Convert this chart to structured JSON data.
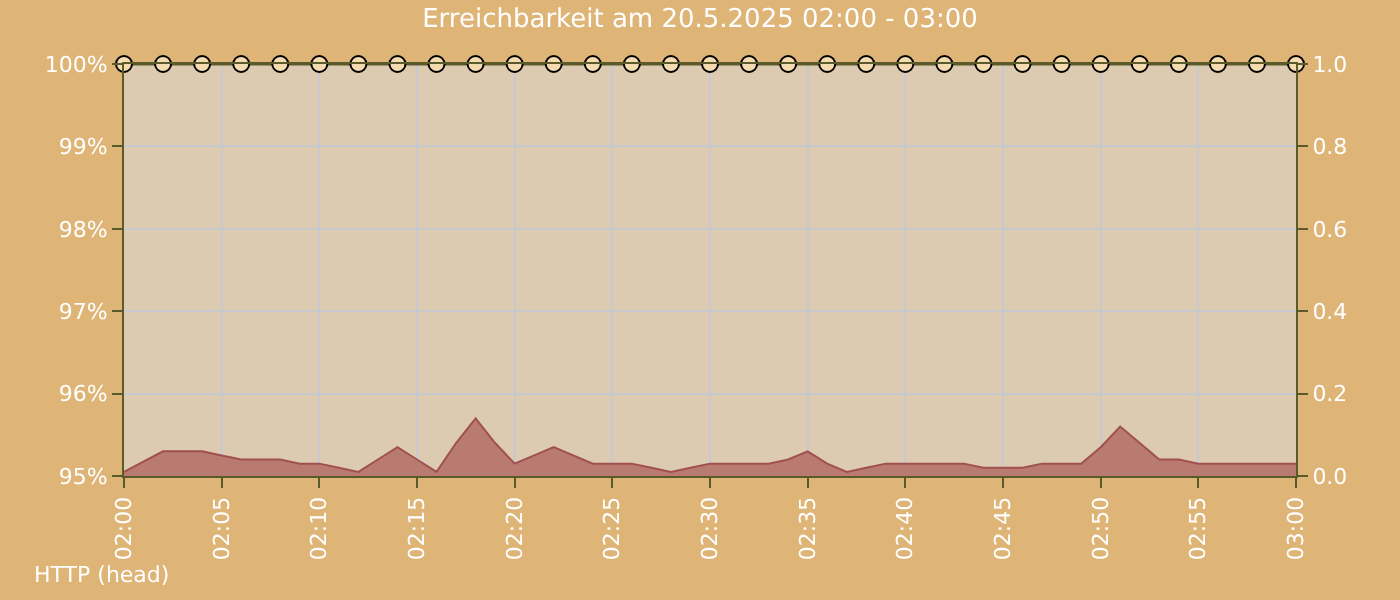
{
  "chart_data": {
    "type": "line",
    "title": "Erreichbarkeit am 20.5.2025 02:00 - 03:00",
    "series": [
      {
        "color": "#5a5a2a",
        "marker": "circle",
        "x": [
          "2025-05-20T02:00",
          "2025-05-20T02:02",
          "2025-05-20T02:04",
          "2025-05-20T02:06",
          "2025-05-20T02:08",
          "2025-05-20T02:10",
          "2025-05-20T02:12",
          "2025-05-20T02:14",
          "2025-05-20T02:16",
          "2025-05-20T02:18",
          "2025-05-20T02:20",
          "2025-05-20T02:22",
          "2025-05-20T02:24",
          "2025-05-20T02:26",
          "2025-05-20T02:28",
          "2025-05-20T02:30",
          "2025-05-20T02:32",
          "2025-05-20T02:34",
          "2025-05-20T02:36",
          "2025-05-20T02:38",
          "2025-05-20T02:40",
          "2025-05-20T02:42",
          "2025-05-20T02:44",
          "2025-05-20T02:46",
          "2025-05-20T02:48",
          "2025-05-20T02:50",
          "2025-05-20T02:52",
          "2025-05-20T02:54",
          "2025-05-20T02:56",
          "2025-05-20T02:58",
          "2025-05-20T03:00"
        ],
        "values": [
          100,
          100,
          100,
          100,
          100,
          100,
          100,
          100,
          100,
          100,
          100,
          100,
          100,
          100,
          100,
          100,
          100,
          100,
          100,
          100,
          100,
          100,
          100,
          100,
          100,
          100,
          100,
          100,
          100,
          100,
          100
        ]
      },
      {
        "type": "area",
        "axis": "y2",
        "color": "#b97b70",
        "x": [
          "2025-05-20T02:00",
          "2025-05-20T02:02",
          "2025-05-20T02:03",
          "2025-05-20T02:04",
          "2025-05-20T02:05",
          "2025-05-20T02:06",
          "2025-05-20T02:07",
          "2025-05-20T02:08",
          "2025-05-20T02:09",
          "2025-05-20T02:10",
          "2025-05-20T02:11",
          "2025-05-20T02:12",
          "2025-05-20T02:13",
          "2025-05-20T02:14",
          "2025-05-20T02:15",
          "2025-05-20T02:16",
          "2025-05-20T02:17",
          "2025-05-20T02:18",
          "2025-05-20T02:19",
          "2025-05-20T02:20",
          "2025-05-20T02:21",
          "2025-05-20T02:22",
          "2025-05-20T02:23",
          "2025-05-20T02:24",
          "2025-05-20T02:25",
          "2025-05-20T02:26",
          "2025-05-20T02:27",
          "2025-05-20T02:28",
          "2025-05-20T02:29",
          "2025-05-20T02:30",
          "2025-05-20T02:31",
          "2025-05-20T02:32",
          "2025-05-20T02:33",
          "2025-05-20T02:34",
          "2025-05-20T02:35",
          "2025-05-20T02:36",
          "2025-05-20T02:37",
          "2025-05-20T02:38",
          "2025-05-20T02:39",
          "2025-05-20T02:40",
          "2025-05-20T02:41",
          "2025-05-20T02:42",
          "2025-05-20T02:43",
          "2025-05-20T02:44",
          "2025-05-20T02:45",
          "2025-05-20T02:46",
          "2025-05-20T02:47",
          "2025-05-20T02:48",
          "2025-05-20T02:49",
          "2025-05-20T02:50",
          "2025-05-20T02:51",
          "2025-05-20T02:52",
          "2025-05-20T02:53",
          "2025-05-20T02:54",
          "2025-05-20T02:55",
          "2025-05-20T02:56",
          "2025-05-20T02:57",
          "2025-05-20T02:58",
          "2025-05-20T02:59",
          "2025-05-20T03:00"
        ],
        "values": [
          0.01,
          0.06,
          0.06,
          0.06,
          0.05,
          0.04,
          0.04,
          0.04,
          0.03,
          0.03,
          0.02,
          0.01,
          0.04,
          0.07,
          0.04,
          0.01,
          0.08,
          0.14,
          0.08,
          0.03,
          0.05,
          0.07,
          0.05,
          0.03,
          0.03,
          0.03,
          0.02,
          0.01,
          0.02,
          0.03,
          0.03,
          0.03,
          0.03,
          0.04,
          0.06,
          0.03,
          0.01,
          0.02,
          0.03,
          0.03,
          0.03,
          0.03,
          0.03,
          0.02,
          0.02,
          0.02,
          0.03,
          0.03,
          0.03,
          0.07,
          0.12,
          0.08,
          0.04,
          0.04,
          0.03,
          0.03,
          0.03,
          0.03,
          0.03,
          0.03
        ]
      }
    ],
    "xlim": [
      "2025-05-20T02:00",
      "2025-05-20T03:00"
    ],
    "xticks": [
      {
        "value": "2025-05-20T02:00",
        "label": "02:00"
      },
      {
        "value": "2025-05-20T02:05",
        "label": "02:05"
      },
      {
        "value": "2025-05-20T02:10",
        "label": "02:10"
      },
      {
        "value": "2025-05-20T02:15",
        "label": "02:15"
      },
      {
        "value": "2025-05-20T02:20",
        "label": "02:20"
      },
      {
        "value": "2025-05-20T02:25",
        "label": "02:25"
      },
      {
        "value": "2025-05-20T02:30",
        "label": "02:30"
      },
      {
        "value": "2025-05-20T02:35",
        "label": "02:35"
      },
      {
        "value": "2025-05-20T02:40",
        "label": "02:40"
      },
      {
        "value": "2025-05-20T02:45",
        "label": "02:45"
      },
      {
        "value": "2025-05-20T02:50",
        "label": "02:50"
      },
      {
        "value": "2025-05-20T02:55",
        "label": "02:55"
      },
      {
        "value": "2025-05-20T03:00",
        "label": "03:00"
      }
    ],
    "ylim": [
      95,
      100
    ],
    "yticks": [
      {
        "value": 95,
        "label": "95%"
      },
      {
        "value": 96,
        "label": "96%"
      },
      {
        "value": 97,
        "label": "97%"
      },
      {
        "value": 98,
        "label": "98%"
      },
      {
        "value": 99,
        "label": "99%"
      },
      {
        "value": 100,
        "label": "100%"
      }
    ],
    "y2lim": [
      0,
      1
    ],
    "y2ticks": [
      {
        "value": 0,
        "label": "0.0"
      },
      {
        "value": 0.2,
        "label": "0.2"
      },
      {
        "value": 0.4,
        "label": "0.4"
      },
      {
        "value": 0.6,
        "label": "0.6"
      },
      {
        "value": 0.8,
        "label": "0.8"
      },
      {
        "value": 1,
        "label": "1.0"
      }
    ],
    "grid": true,
    "annotations": [
      "HTTP (head)"
    ]
  }
}
